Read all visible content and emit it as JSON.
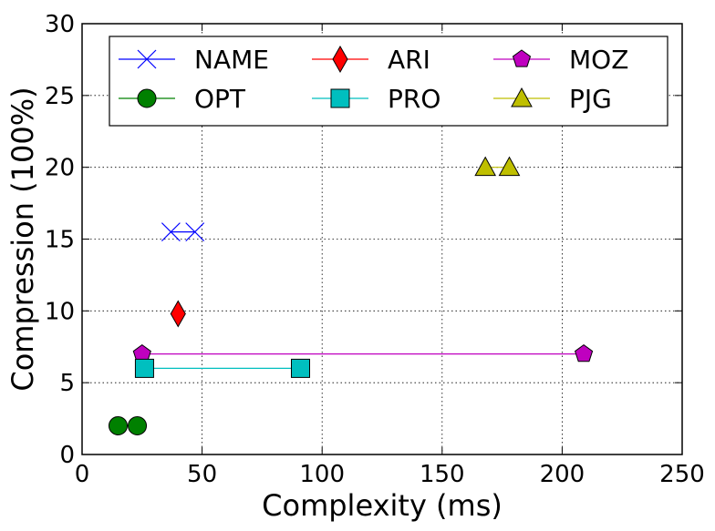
{
  "chart_data": {
    "type": "line",
    "xlabel": "Complexity (ms)",
    "ylabel": "Compression (100%)",
    "xlim": [
      0,
      250
    ],
    "ylim": [
      0,
      30
    ],
    "xticks": [
      "0",
      "50",
      "100",
      "150",
      "200",
      "250"
    ],
    "yticks": [
      "0",
      "5",
      "10",
      "15",
      "20",
      "25",
      "30"
    ],
    "grid": true,
    "legend_position": "top",
    "series": [
      {
        "name": "NAME",
        "color": "#0000ff",
        "marker": "x",
        "x": [
          37,
          47
        ],
        "y": [
          15.5,
          15.5
        ]
      },
      {
        "name": "ARI",
        "color": "#ff0000",
        "marker": "diamond",
        "x": [
          40
        ],
        "y": [
          9.8
        ]
      },
      {
        "name": "MOZ",
        "color": "#bf00bf",
        "marker": "pentagon",
        "x": [
          25,
          209
        ],
        "y": [
          7.0,
          7.0
        ]
      },
      {
        "name": "OPT",
        "color": "#008000",
        "marker": "circle",
        "x": [
          15,
          23
        ],
        "y": [
          2.0,
          2.0
        ]
      },
      {
        "name": "PRO",
        "color": "#00bfbf",
        "marker": "square",
        "x": [
          26,
          91
        ],
        "y": [
          6.0,
          6.0
        ]
      },
      {
        "name": "PJG",
        "color": "#bfbf00",
        "marker": "triangle",
        "x": [
          168,
          178
        ],
        "y": [
          20.0,
          20.0
        ]
      }
    ]
  }
}
